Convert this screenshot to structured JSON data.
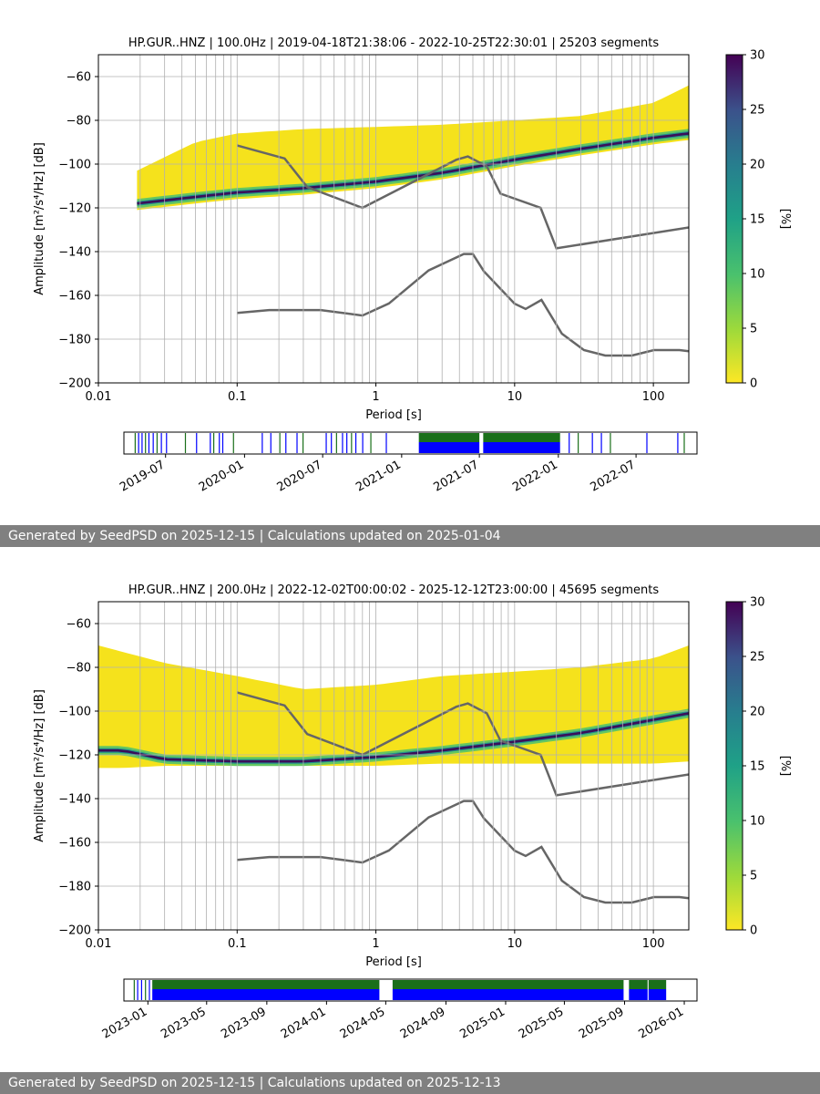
{
  "footers": [
    "Generated by SeedPSD on 2025-12-15 | Calculations updated on 2025-01-04",
    "Generated by SeedPSD on 2025-12-15 | Calculations updated on 2025-12-13"
  ],
  "colors": {
    "nlnm_nhnm": "#666666",
    "avail_green": "#1a6f1a",
    "avail_blue": "#0000ff",
    "grid": "#b0b0b0"
  },
  "chart_data": [
    {
      "type": "heatmap",
      "title": "HP.GUR..HNZ | 100.0Hz | 2019-04-18T21:38:06 - 2022-10-25T22:30:01 | 25203 segments",
      "xlabel": "Period [s]",
      "ylabel": "Amplitude [m²/s⁴/Hz] [dB]",
      "x_scale": "log",
      "xlim": [
        0.01,
        180
      ],
      "ylim": [
        -200,
        -50
      ],
      "xticks": [
        "0.01",
        "0.1",
        "1",
        "10",
        "100"
      ],
      "yticks": [
        -60,
        -80,
        -100,
        -120,
        -140,
        -160,
        -180,
        -200
      ],
      "grid": true,
      "colorbar": {
        "label": "[%]",
        "range": [
          0,
          30
        ],
        "ticks": [
          0,
          5,
          10,
          15,
          20,
          25,
          30
        ],
        "colormap": "viridis_r"
      },
      "psd_mode": [
        [
          0.019,
          -118
        ],
        [
          0.05,
          -115
        ],
        [
          0.1,
          -113
        ],
        [
          0.3,
          -111
        ],
        [
          1,
          -108
        ],
        [
          3,
          -104
        ],
        [
          10,
          -98
        ],
        [
          30,
          -93
        ],
        [
          100,
          -88
        ],
        [
          180,
          -86
        ]
      ],
      "psd_upper": [
        [
          0.019,
          -103
        ],
        [
          0.05,
          -90
        ],
        [
          0.1,
          -86
        ],
        [
          0.3,
          -84
        ],
        [
          1,
          -83
        ],
        [
          3,
          -82
        ],
        [
          10,
          -80
        ],
        [
          30,
          -78
        ],
        [
          100,
          -72
        ],
        [
          180,
          -64
        ]
      ],
      "psd_lower": [
        [
          0.019,
          -121
        ],
        [
          0.05,
          -118
        ],
        [
          0.1,
          -116
        ],
        [
          0.3,
          -114
        ],
        [
          1,
          -111
        ],
        [
          3,
          -107
        ],
        [
          10,
          -101
        ],
        [
          30,
          -96
        ],
        [
          100,
          -91
        ],
        [
          180,
          -89
        ]
      ],
      "psd_xmin": 0.019,
      "nhnm": [
        [
          0.1,
          -91.5
        ],
        [
          0.22,
          -97.4
        ],
        [
          0.32,
          -110.5
        ],
        [
          0.8,
          -120
        ],
        [
          3.8,
          -98
        ],
        [
          4.6,
          -96.5
        ],
        [
          6.3,
          -101
        ],
        [
          7.9,
          -113.5
        ],
        [
          15.4,
          -120
        ],
        [
          20,
          -138.5
        ],
        [
          354.8,
          -126
        ]
      ],
      "nlnm": [
        [
          0.1,
          -168
        ],
        [
          0.17,
          -166.7
        ],
        [
          0.4,
          -166.7
        ],
        [
          0.8,
          -169.2
        ],
        [
          1.24,
          -163.7
        ],
        [
          2.4,
          -148.6
        ],
        [
          4.3,
          -141.1
        ],
        [
          5,
          -141.1
        ],
        [
          6,
          -149
        ],
        [
          10,
          -163.8
        ],
        [
          12,
          -166.2
        ],
        [
          15.6,
          -162.1
        ],
        [
          21.9,
          -177.5
        ],
        [
          31.6,
          -185
        ],
        [
          45,
          -187.5
        ],
        [
          70,
          -187.5
        ],
        [
          101,
          -185
        ],
        [
          154,
          -185
        ],
        [
          328,
          -187.5
        ]
      ],
      "availability": {
        "tick_labels": [
          "2019-07",
          "2020-01",
          "2020-07",
          "2021-01",
          "2021-07",
          "2022-01",
          "2022-07"
        ],
        "range": [
          "2019-03-26",
          "2022-11-20"
        ],
        "solid_intervals": [
          [
            "2021-02-10",
            "2021-07-01"
          ],
          [
            "2021-07-10",
            "2022-01-05"
          ]
        ],
        "sparse_dates": [
          "2019-04-20",
          "2019-04-28",
          "2019-05-06",
          "2019-05-14",
          "2019-05-22",
          "2019-06-01",
          "2019-06-10",
          "2019-06-20",
          "2019-07-02",
          "2019-08-15",
          "2019-09-10",
          "2019-10-12",
          "2019-10-20",
          "2019-11-02",
          "2019-11-10",
          "2019-12-05",
          "2020-02-10",
          "2020-03-01",
          "2020-03-22",
          "2020-04-05",
          "2020-05-01",
          "2020-05-15",
          "2020-07-08",
          "2020-07-20",
          "2020-08-01",
          "2020-08-15",
          "2020-08-25",
          "2020-09-05",
          "2020-09-15",
          "2020-10-01",
          "2020-10-20",
          "2020-11-25",
          "2022-01-25",
          "2022-02-15",
          "2022-03-20",
          "2022-04-10",
          "2022-05-01",
          "2022-07-25",
          "2022-10-05",
          "2022-10-20"
        ]
      }
    },
    {
      "type": "heatmap",
      "title": "HP.GUR..HNZ | 200.0Hz | 2022-12-02T00:00:02 - 2025-12-12T23:00:00 | 45695 segments",
      "xlabel": "Period [s]",
      "ylabel": "Amplitude [m²/s⁴/Hz] [dB]",
      "x_scale": "log",
      "xlim": [
        0.01,
        180
      ],
      "ylim": [
        -200,
        -50
      ],
      "xticks": [
        "0.01",
        "0.1",
        "1",
        "10",
        "100"
      ],
      "yticks": [
        -60,
        -80,
        -100,
        -120,
        -140,
        -160,
        -180,
        -200
      ],
      "grid": true,
      "colorbar": {
        "label": "[%]",
        "range": [
          0,
          30
        ],
        "ticks": [
          0,
          5,
          10,
          15,
          20,
          25,
          30
        ],
        "colormap": "viridis_r"
      },
      "psd_mode": [
        [
          0.015,
          -118
        ],
        [
          0.03,
          -122
        ],
        [
          0.1,
          -123
        ],
        [
          0.3,
          -123
        ],
        [
          1,
          -121
        ],
        [
          3,
          -118
        ],
        [
          10,
          -114
        ],
        [
          30,
          -110
        ],
        [
          100,
          -104
        ],
        [
          180,
          -101
        ]
      ],
      "psd_upper": [
        [
          0.01,
          -70
        ],
        [
          0.03,
          -78
        ],
        [
          0.1,
          -84
        ],
        [
          0.3,
          -90
        ],
        [
          1,
          -88
        ],
        [
          3,
          -84
        ],
        [
          10,
          -82
        ],
        [
          30,
          -80
        ],
        [
          100,
          -76
        ],
        [
          180,
          -70
        ]
      ],
      "psd_lower": [
        [
          0.015,
          -126
        ],
        [
          0.03,
          -125
        ],
        [
          0.1,
          -125
        ],
        [
          0.3,
          -125
        ],
        [
          1,
          -125
        ],
        [
          3,
          -124
        ],
        [
          10,
          -124
        ],
        [
          30,
          -124
        ],
        [
          100,
          -124
        ],
        [
          180,
          -123
        ]
      ],
      "psd_xmin": 0.01,
      "nhnm": [
        [
          0.1,
          -91.5
        ],
        [
          0.22,
          -97.4
        ],
        [
          0.32,
          -110.5
        ],
        [
          0.8,
          -120
        ],
        [
          3.8,
          -98
        ],
        [
          4.6,
          -96.5
        ],
        [
          6.3,
          -101
        ],
        [
          7.9,
          -113.5
        ],
        [
          15.4,
          -120
        ],
        [
          20,
          -138.5
        ],
        [
          354.8,
          -126
        ]
      ],
      "nlnm": [
        [
          0.1,
          -168
        ],
        [
          0.17,
          -166.7
        ],
        [
          0.4,
          -166.7
        ],
        [
          0.8,
          -169.2
        ],
        [
          1.24,
          -163.7
        ],
        [
          2.4,
          -148.6
        ],
        [
          4.3,
          -141.1
        ],
        [
          5,
          -141.1
        ],
        [
          6,
          -149
        ],
        [
          10,
          -163.8
        ],
        [
          12,
          -166.2
        ],
        [
          15.6,
          -162.1
        ],
        [
          21.9,
          -177.5
        ],
        [
          31.6,
          -185
        ],
        [
          45,
          -187.5
        ],
        [
          70,
          -187.5
        ],
        [
          101,
          -185
        ],
        [
          154,
          -185
        ],
        [
          328,
          -187.5
        ]
      ],
      "availability": {
        "tick_labels": [
          "2023-01",
          "2023-05",
          "2023-09",
          "2024-01",
          "2024-05",
          "2024-09",
          "2025-01",
          "2025-05",
          "2025-09",
          "2026-01"
        ],
        "range": [
          "2022-11-13",
          "2026-01-27"
        ],
        "solid_intervals": [
          [
            "2023-01-10",
            "2024-04-18"
          ],
          [
            "2024-05-15",
            "2025-08-30"
          ],
          [
            "2025-09-10",
            "2025-10-18"
          ],
          [
            "2025-10-20",
            "2025-11-25"
          ]
        ],
        "sparse_dates": [
          "2022-12-03",
          "2022-12-10",
          "2022-12-18",
          "2022-12-26",
          "2023-01-03"
        ]
      }
    }
  ]
}
